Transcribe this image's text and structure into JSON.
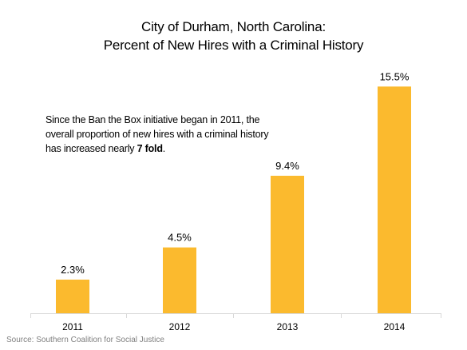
{
  "chart_data": {
    "type": "bar",
    "title_line1": "City of Durham, North Carolina:",
    "title_line2": "Percent of New Hires with a Criminal History",
    "categories": [
      "2011",
      "2012",
      "2013",
      "2014"
    ],
    "values": [
      2.3,
      4.5,
      9.4,
      15.5
    ],
    "value_labels": [
      "2.3%",
      "4.5%",
      "9.4%",
      "15.5%"
    ],
    "ylim": [
      0,
      16.5
    ],
    "grid": false,
    "legend": "none",
    "bar_color": "#FBBA2E",
    "axis_color": "#d9d9d9",
    "annotation": {
      "text_before": "Since the Ban the Box initiative began in 2011, the overall proportion of new hires with a criminal history has increased nearly ",
      "emphasis": "7 fold",
      "text_after": "."
    },
    "source": "Source: Southern Coalition for Social Justice"
  }
}
